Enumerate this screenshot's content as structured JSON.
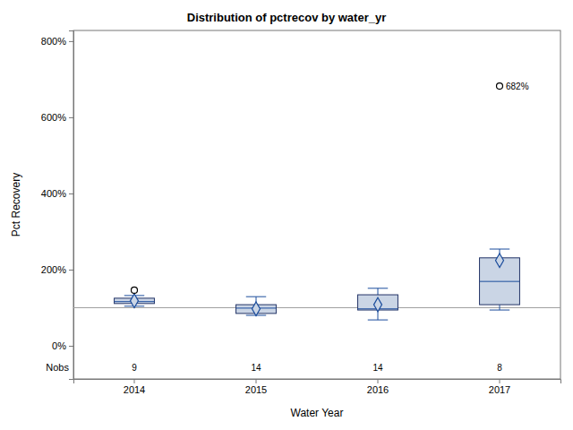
{
  "chart_data": {
    "type": "box",
    "title": "Distribution of pctrecov by water_yr",
    "x_label": "Water Year",
    "y_label": "Pct Recovery",
    "categories": [
      "2014",
      "2015",
      "2016",
      "2017"
    ],
    "boxes": [
      {
        "min": 104,
        "q1": 111,
        "median": 116,
        "q3": 125,
        "max": 132,
        "mean": 118,
        "outliers": [
          146
        ],
        "nobs": 9
      },
      {
        "min": 80,
        "q1": 85,
        "median": 99,
        "q3": 108,
        "max": 129,
        "mean": 97,
        "outliers": [],
        "nobs": 14
      },
      {
        "min": 68,
        "q1": 94,
        "median": 97,
        "q3": 134,
        "max": 151,
        "mean": 108,
        "outliers": [],
        "nobs": 14
      },
      {
        "min": 94,
        "q1": 108,
        "median": 169,
        "q3": 231,
        "max": 254,
        "mean": 224,
        "outliers": [
          682
        ],
        "outlier_labels": [
          "682%"
        ],
        "nobs": 8
      }
    ],
    "nobs_label": "Nobs",
    "reference_line": 100,
    "color": "#cad5e5",
    "marker": "diamond",
    "grid": false,
    "ylim": [
      -87,
      828
    ],
    "yticks": [
      {
        "value": 0,
        "label": "0%"
      },
      {
        "value": 200,
        "label": "200%"
      },
      {
        "value": 400,
        "label": "400%"
      },
      {
        "value": 600,
        "label": "600%"
      },
      {
        "value": 800,
        "label": "800%"
      }
    ]
  }
}
